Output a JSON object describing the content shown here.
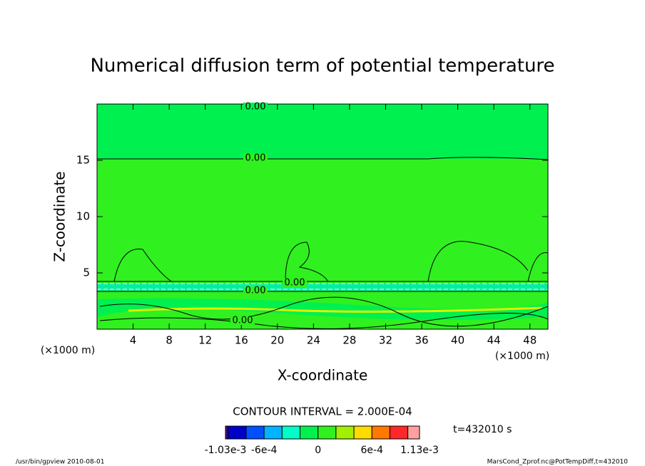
{
  "chart_data": {
    "type": "contour",
    "title": "Numerical diffusion term of potential temperature",
    "xlabel": "X-coordinate",
    "ylabel": "Z-coordinate",
    "x_unit": "(×1000 m)",
    "y_unit": "(×1000 m)",
    "xlim": [
      0,
      50
    ],
    "ylim": [
      0,
      20
    ],
    "xticks": [
      4,
      8,
      12,
      16,
      20,
      24,
      28,
      32,
      36,
      40,
      44,
      48
    ],
    "yticks": [
      5,
      10,
      15
    ],
    "contour_labels": [
      "0.00",
      "0.00",
      "0.00",
      "0.00",
      "0.00"
    ],
    "contour_interval": "CONTOUR INTERVAL = 2.000E-04",
    "time_label": "t=432010 s",
    "levels": [
      -0.00103,
      -0.001,
      -0.0008,
      -0.0006,
      -0.0004,
      -0.0002,
      0,
      0.0002,
      0.0004,
      0.0006,
      0.0008,
      0.001,
      0.00113
    ],
    "colors": [
      "#50008c",
      "#0000c8",
      "#0050ff",
      "#00b4ff",
      "#00ffc8",
      "#00f050",
      "#30f020",
      "#a0f000",
      "#ffdc00",
      "#ff7800",
      "#ff2828",
      "#ffa0a0"
    ],
    "colorbar_ticks": [
      {
        "value": -0.00103,
        "label": "-1.03e-3"
      },
      {
        "value": -0.0006,
        "label": "-6e-4"
      },
      0,
      {
        "value": 0.0006,
        "label": "6e-4"
      },
      {
        "value": 0.00113,
        "label": "1.13e-3"
      }
    ],
    "footer_left": "/usr/bin/gpview  2010-08-01",
    "footer_right": "MarsCond_Zprof.nc@PotTempDiff,t=432010"
  }
}
